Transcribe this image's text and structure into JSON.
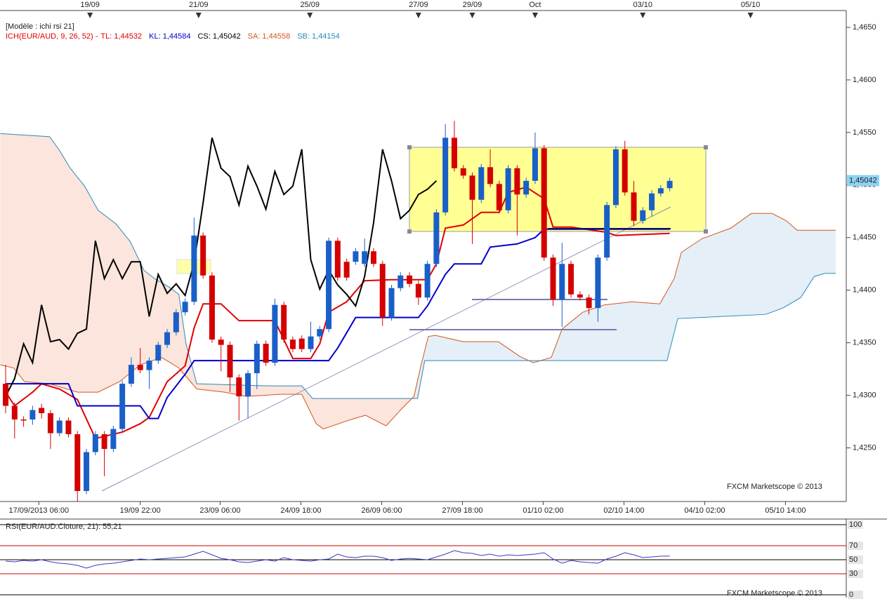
{
  "chart_data": [
    {
      "type": "candlestick",
      "title": "[Modèle : ichi rsi 21]",
      "indicator": "ICH(EUR/AUD, 9, 26, 52) -",
      "watermark": "FXCM Marketscope © 2013",
      "last_price": {
        "value": 1.45042,
        "label": "1,45042"
      },
      "up_color": "#1a5fc8",
      "down_color": "#d40000",
      "cloud_colors": [
        "#fbe5dc",
        "#e4eff8"
      ],
      "xlim": [
        -0.63,
        92.5
      ],
      "ylim": [
        1.4199,
        1.4666
      ],
      "yticks": [
        {
          "value": 1.465,
          "label": "1,4650"
        },
        {
          "value": 1.46,
          "label": "1,4600"
        },
        {
          "value": 1.455,
          "label": "1,4550"
        },
        {
          "value": 1.45,
          "label": "1,4500"
        },
        {
          "value": 1.445,
          "label": "1,4450"
        },
        {
          "value": 1.44,
          "label": "1,4400"
        },
        {
          "value": 1.435,
          "label": "1,4350"
        },
        {
          "value": 1.43,
          "label": "1,4300"
        },
        {
          "value": 1.425,
          "label": "1,4250"
        }
      ],
      "xticks": [
        {
          "value": 3.7,
          "label": "17/09/2013 06:00"
        },
        {
          "value": 15.0,
          "label": "19/09 22:00"
        },
        {
          "value": 23.9,
          "label": "23/09 06:00"
        },
        {
          "value": 32.9,
          "label": "24/09 18:00"
        },
        {
          "value": 41.9,
          "label": "26/09 06:00"
        },
        {
          "value": 50.9,
          "label": "27/09 18:00"
        },
        {
          "value": 59.9,
          "label": "01/10 02:00"
        },
        {
          "value": 68.9,
          "label": "02/10 14:00"
        },
        {
          "value": 77.9,
          "label": "04/10 02:00"
        },
        {
          "value": 86.9,
          "label": "05/10 14:00"
        }
      ],
      "xticks_top": [
        {
          "value": 9.4,
          "label": "19/09"
        },
        {
          "value": 21.5,
          "label": "21/09"
        },
        {
          "value": 33.9,
          "label": "25/09"
        },
        {
          "value": 46.0,
          "label": "27/09"
        },
        {
          "value": 52.0,
          "label": "29/09"
        },
        {
          "value": 59.0,
          "label": "Oct"
        },
        {
          "value": 71.0,
          "label": "03/10"
        },
        {
          "value": 83.0,
          "label": "05/10"
        }
      ],
      "x": [
        0,
        1,
        2,
        3,
        4,
        5,
        6,
        7,
        8,
        9,
        10,
        11,
        12,
        13,
        14,
        15,
        16,
        17,
        18,
        19,
        20,
        21,
        22,
        23,
        24,
        25,
        26,
        27,
        28,
        29,
        30,
        31,
        32,
        33,
        34,
        35,
        36,
        37,
        38,
        39,
        40,
        41,
        42,
        43,
        44,
        45,
        46,
        47,
        48,
        49,
        50,
        51,
        52,
        53,
        54,
        55,
        56,
        57,
        58,
        59,
        60,
        61,
        62,
        63,
        64,
        65,
        66,
        67,
        68,
        69,
        70,
        71,
        72,
        73,
        74
      ],
      "open": [
        1.4311,
        1.429,
        1.4277,
        1.4277,
        1.4288,
        1.4283,
        1.4264,
        1.4276,
        1.4263,
        1.4209,
        1.4246,
        1.4263,
        1.4249,
        1.4268,
        1.4311,
        1.4329,
        1.4324,
        1.4333,
        1.4348,
        1.436,
        1.4379,
        1.4389,
        1.4452,
        1.4414,
        1.4353,
        1.4348,
        1.4317,
        1.4299,
        1.4321,
        1.4349,
        1.4331,
        1.4386,
        1.4353,
        1.4354,
        1.4344,
        1.4356,
        1.4363,
        1.4447,
        1.4427,
        1.4427,
        1.4425,
        1.4437,
        1.4425,
        1.4374,
        1.4402,
        1.4414,
        1.4406,
        1.4393,
        1.4425,
        1.4474,
        1.4545,
        1.4516,
        1.4509,
        1.4486,
        1.4517,
        1.4501,
        1.4476,
        1.4516,
        1.4491,
        1.4504,
        1.4535,
        1.4431,
        1.4391,
        1.4425,
        1.4396,
        1.4393,
        1.4383,
        1.4431,
        1.4481,
        1.4534,
        1.4493,
        1.4466,
        1.4476,
        1.4492,
        1.4497
      ],
      "high": [
        1.4329,
        1.4293,
        1.428,
        1.429,
        1.4292,
        1.4286,
        1.4279,
        1.4279,
        1.4266,
        1.4249,
        1.4266,
        1.4266,
        1.4271,
        1.4314,
        1.4336,
        1.4345,
        1.4336,
        1.4351,
        1.4363,
        1.4382,
        1.4392,
        1.4469,
        1.4455,
        1.4417,
        1.4356,
        1.4351,
        1.432,
        1.4324,
        1.4352,
        1.4352,
        1.4392,
        1.4389,
        1.4356,
        1.4357,
        1.437,
        1.4366,
        1.445,
        1.445,
        1.443,
        1.444,
        1.4449,
        1.444,
        1.4428,
        1.4405,
        1.4417,
        1.4417,
        1.4409,
        1.4428,
        1.4477,
        1.4558,
        1.4561,
        1.4519,
        1.4512,
        1.452,
        1.4534,
        1.4504,
        1.4519,
        1.4519,
        1.4507,
        1.455,
        1.4538,
        1.4434,
        1.4445,
        1.4428,
        1.4399,
        1.4396,
        1.4434,
        1.4484,
        1.4537,
        1.4542,
        1.4504,
        1.4479,
        1.4495,
        1.45,
        1.4507
      ],
      "low": [
        1.4283,
        1.4259,
        1.427,
        1.4272,
        1.4278,
        1.4249,
        1.4261,
        1.426,
        1.4199,
        1.4206,
        1.4243,
        1.4223,
        1.4246,
        1.4265,
        1.4308,
        1.4321,
        1.4306,
        1.433,
        1.4345,
        1.4357,
        1.4376,
        1.4386,
        1.4411,
        1.435,
        1.4323,
        1.4303,
        1.4276,
        1.4278,
        1.4306,
        1.4328,
        1.4328,
        1.435,
        1.4341,
        1.4341,
        1.4341,
        1.4353,
        1.436,
        1.4409,
        1.4409,
        1.4424,
        1.4422,
        1.4422,
        1.4366,
        1.4371,
        1.4399,
        1.4403,
        1.4386,
        1.439,
        1.4422,
        1.4471,
        1.4513,
        1.4506,
        1.4444,
        1.4483,
        1.4498,
        1.4473,
        1.4473,
        1.4452,
        1.4488,
        1.4501,
        1.4428,
        1.4385,
        1.4365,
        1.4393,
        1.439,
        1.4377,
        1.437,
        1.4428,
        1.4478,
        1.449,
        1.4461,
        1.4463,
        1.447,
        1.4489,
        1.4494
      ],
      "close": [
        1.429,
        1.4277,
        1.4276,
        1.4286,
        1.4283,
        1.4264,
        1.4276,
        1.4263,
        1.4209,
        1.4246,
        1.4263,
        1.4249,
        1.4268,
        1.4311,
        1.4329,
        1.4324,
        1.4333,
        1.4348,
        1.436,
        1.4379,
        1.4389,
        1.4452,
        1.4414,
        1.4353,
        1.4348,
        1.4317,
        1.4299,
        1.4321,
        1.4349,
        1.4331,
        1.4386,
        1.4353,
        1.4344,
        1.4344,
        1.4356,
        1.4363,
        1.4447,
        1.4412,
        1.4412,
        1.4437,
        1.4437,
        1.4425,
        1.4374,
        1.4402,
        1.4414,
        1.4406,
        1.4393,
        1.4425,
        1.4474,
        1.4545,
        1.4516,
        1.4509,
        1.4486,
        1.4517,
        1.4501,
        1.4476,
        1.4516,
        1.4491,
        1.4504,
        1.4535,
        1.4431,
        1.4391,
        1.4425,
        1.4396,
        1.4393,
        1.4383,
        1.4431,
        1.4481,
        1.4534,
        1.4493,
        1.4466,
        1.4476,
        1.4492,
        1.4497,
        1.4504
      ],
      "series": [
        {
          "name": "TL: 1,44532",
          "color": "#e00000",
          "width": 2,
          "x": [
            0,
            1,
            3,
            4,
            6,
            8,
            10,
            13,
            15,
            16,
            17,
            18,
            20,
            21,
            22,
            24,
            26,
            30,
            32,
            34,
            35,
            36,
            38,
            40,
            43,
            47,
            48,
            49,
            51,
            53,
            55,
            56,
            58,
            60,
            61,
            63,
            67,
            68,
            74
          ],
          "values": [
            1.4303,
            1.429,
            1.4303,
            1.4311,
            1.4306,
            1.4296,
            1.4259,
            1.4265,
            1.4273,
            1.4279,
            1.4296,
            1.4313,
            1.4328,
            1.4364,
            1.4387,
            1.4387,
            1.4371,
            1.4371,
            1.4335,
            1.4335,
            1.4349,
            1.4379,
            1.4389,
            1.4409,
            1.441,
            1.441,
            1.4425,
            1.4459,
            1.4462,
            1.4474,
            1.4474,
            1.4493,
            1.4498,
            1.4487,
            1.446,
            1.446,
            1.4455,
            1.4452,
            1.4454
          ]
        },
        {
          "name": "KL: 1,44584",
          "color": "#0000cc",
          "width": 2,
          "x": [
            0,
            7,
            8,
            15,
            16,
            17,
            18,
            20,
            21,
            36,
            37,
            39,
            46,
            47,
            48,
            49,
            50,
            53,
            54,
            57,
            59,
            60,
            74
          ],
          "values": [
            1.4311,
            1.4311,
            1.429,
            1.429,
            1.4278,
            1.4278,
            1.4298,
            1.432,
            1.4333,
            1.4333,
            1.4345,
            1.4374,
            1.4374,
            1.4385,
            1.44,
            1.4415,
            1.4425,
            1.4425,
            1.4441,
            1.4444,
            1.445,
            1.4458,
            1.4458
          ]
        },
        {
          "name": "CS: 1,45042",
          "color": "#000000",
          "width": 2,
          "x": [
            0,
            1,
            2,
            3,
            4,
            5,
            6,
            7,
            8,
            9,
            10,
            11,
            12,
            13,
            14,
            15,
            16,
            17,
            18,
            19,
            20,
            21,
            22,
            23,
            24,
            25,
            26,
            27,
            28,
            29,
            30,
            31,
            32,
            33,
            34,
            35,
            36,
            37,
            38,
            39,
            40,
            41,
            42,
            43,
            44,
            45,
            46,
            47,
            48
          ],
          "values": [
            1.4299,
            1.4316,
            1.4349,
            1.4331,
            1.4386,
            1.4351,
            1.4353,
            1.4344,
            1.4359,
            1.4363,
            1.4447,
            1.4411,
            1.4429,
            1.4411,
            1.4427,
            1.4427,
            1.4375,
            1.4415,
            1.4397,
            1.4406,
            1.4395,
            1.4426,
            1.4483,
            1.4545,
            1.4516,
            1.4508,
            1.4481,
            1.4518,
            1.4499,
            1.4477,
            1.4513,
            1.4491,
            1.4499,
            1.4534,
            1.4429,
            1.4401,
            1.4419,
            1.4405,
            1.4396,
            1.4385,
            1.4413,
            1.4464,
            1.4534,
            1.4504,
            1.4468,
            1.4476,
            1.4491,
            1.4496,
            1.4504
          ]
        },
        {
          "name": "SA: 1,44558",
          "color": "#d2561e",
          "width": 1,
          "x": [
            -0.6,
            0.9,
            2.1,
            4.9,
            8.0,
            10.3,
            12.7,
            15.0,
            17.4,
            19.3,
            21.3,
            24.4,
            26.8,
            30.7,
            33.0,
            34.6,
            35.4,
            38.5,
            40.1,
            42.4,
            44.0,
            45.5,
            46.3,
            47.1,
            47.9,
            51.0,
            54.9,
            57.3,
            58.8,
            60.8,
            62.0,
            64.3,
            66.7,
            69.8,
            72.9,
            74.5,
            75.3,
            77.6,
            80.8,
            83.1,
            85.4,
            87.0,
            88.2,
            92.5
          ],
          "values": [
            1.4329,
            1.4326,
            1.4313,
            1.4311,
            1.4303,
            1.4303,
            1.4313,
            1.4329,
            1.4336,
            1.4326,
            1.4306,
            1.4303,
            1.4299,
            1.4301,
            1.4301,
            1.4273,
            1.4268,
            1.4277,
            1.4281,
            1.4271,
            1.4286,
            1.4299,
            1.4329,
            1.4356,
            1.4357,
            1.4351,
            1.4351,
            1.4337,
            1.4331,
            1.4336,
            1.4363,
            1.4379,
            1.4386,
            1.4389,
            1.4387,
            1.4411,
            1.4436,
            1.4449,
            1.4459,
            1.4473,
            1.4473,
            1.4466,
            1.4457,
            1.4457
          ]
        },
        {
          "name": "SB: 1,44154",
          "color": "#2a8ab8",
          "width": 1,
          "x": [
            -0.6,
            4.9,
            6.0,
            7.2,
            8.8,
            10.3,
            12.3,
            13.9,
            15.4,
            16.6,
            18.2,
            19.3,
            20.1,
            21.3,
            29.1,
            33.0,
            34.2,
            45.9,
            46.7,
            73.7,
            74.9,
            84.7,
            86.6,
            88.6,
            90.1,
            91.3,
            92.5
          ],
          "values": [
            1.4549,
            1.4546,
            1.4533,
            1.4516,
            1.4499,
            1.4476,
            1.4463,
            1.4446,
            1.4419,
            1.4411,
            1.4403,
            1.4396,
            1.4349,
            1.4311,
            1.4309,
            1.4309,
            1.4297,
            1.4297,
            1.4333,
            1.4333,
            1.4373,
            1.4377,
            1.4383,
            1.4393,
            1.4413,
            1.4416,
            1.4416
          ]
        }
      ]
    },
    {
      "type": "line",
      "title": "RSI(EUR/AUD.Cloture, 21): 55,21",
      "watermark": "FXCM Marketscope © 2013",
      "xlim": [
        -0.63,
        92.5
      ],
      "ylim": [
        0,
        100
      ],
      "yticks": [
        100,
        70,
        50,
        30,
        0
      ],
      "level_colors": [
        "#000000",
        "#cc0000",
        "#000000",
        "#cc0000",
        "#000000"
      ],
      "series": [
        {
          "name": "RSI",
          "color": "#3838c8",
          "x": [
            0,
            1,
            2,
            3,
            4,
            5,
            6,
            7,
            8,
            9,
            10,
            11,
            12,
            13,
            14,
            15,
            16,
            17,
            18,
            19,
            20,
            21,
            22,
            23,
            24,
            25,
            26,
            27,
            28,
            29,
            30,
            31,
            32,
            33,
            34,
            35,
            36,
            37,
            38,
            39,
            40,
            41,
            42,
            43,
            44,
            45,
            46,
            47,
            48,
            49,
            50,
            51,
            52,
            53,
            54,
            55,
            56,
            57,
            58,
            59,
            60,
            61,
            62,
            63,
            64,
            65,
            66,
            67,
            68,
            69,
            70,
            71,
            72,
            73,
            74
          ],
          "values": [
            48,
            47,
            49,
            48,
            50,
            47,
            45,
            44,
            42,
            38,
            42,
            44,
            45,
            47,
            49,
            51,
            50,
            51,
            52,
            53,
            54,
            58,
            62,
            57,
            52,
            50,
            47,
            46,
            48,
            50,
            48,
            53,
            50,
            49,
            48,
            50,
            51,
            58,
            54,
            53,
            55,
            55,
            53,
            49,
            51,
            52,
            51,
            50,
            54,
            58,
            63,
            60,
            59,
            56,
            58,
            55,
            57,
            56,
            57,
            58,
            60,
            51,
            45,
            49,
            47,
            46,
            45,
            51,
            55,
            60,
            57,
            53,
            54,
            55,
            55.21
          ]
        }
      ]
    }
  ]
}
